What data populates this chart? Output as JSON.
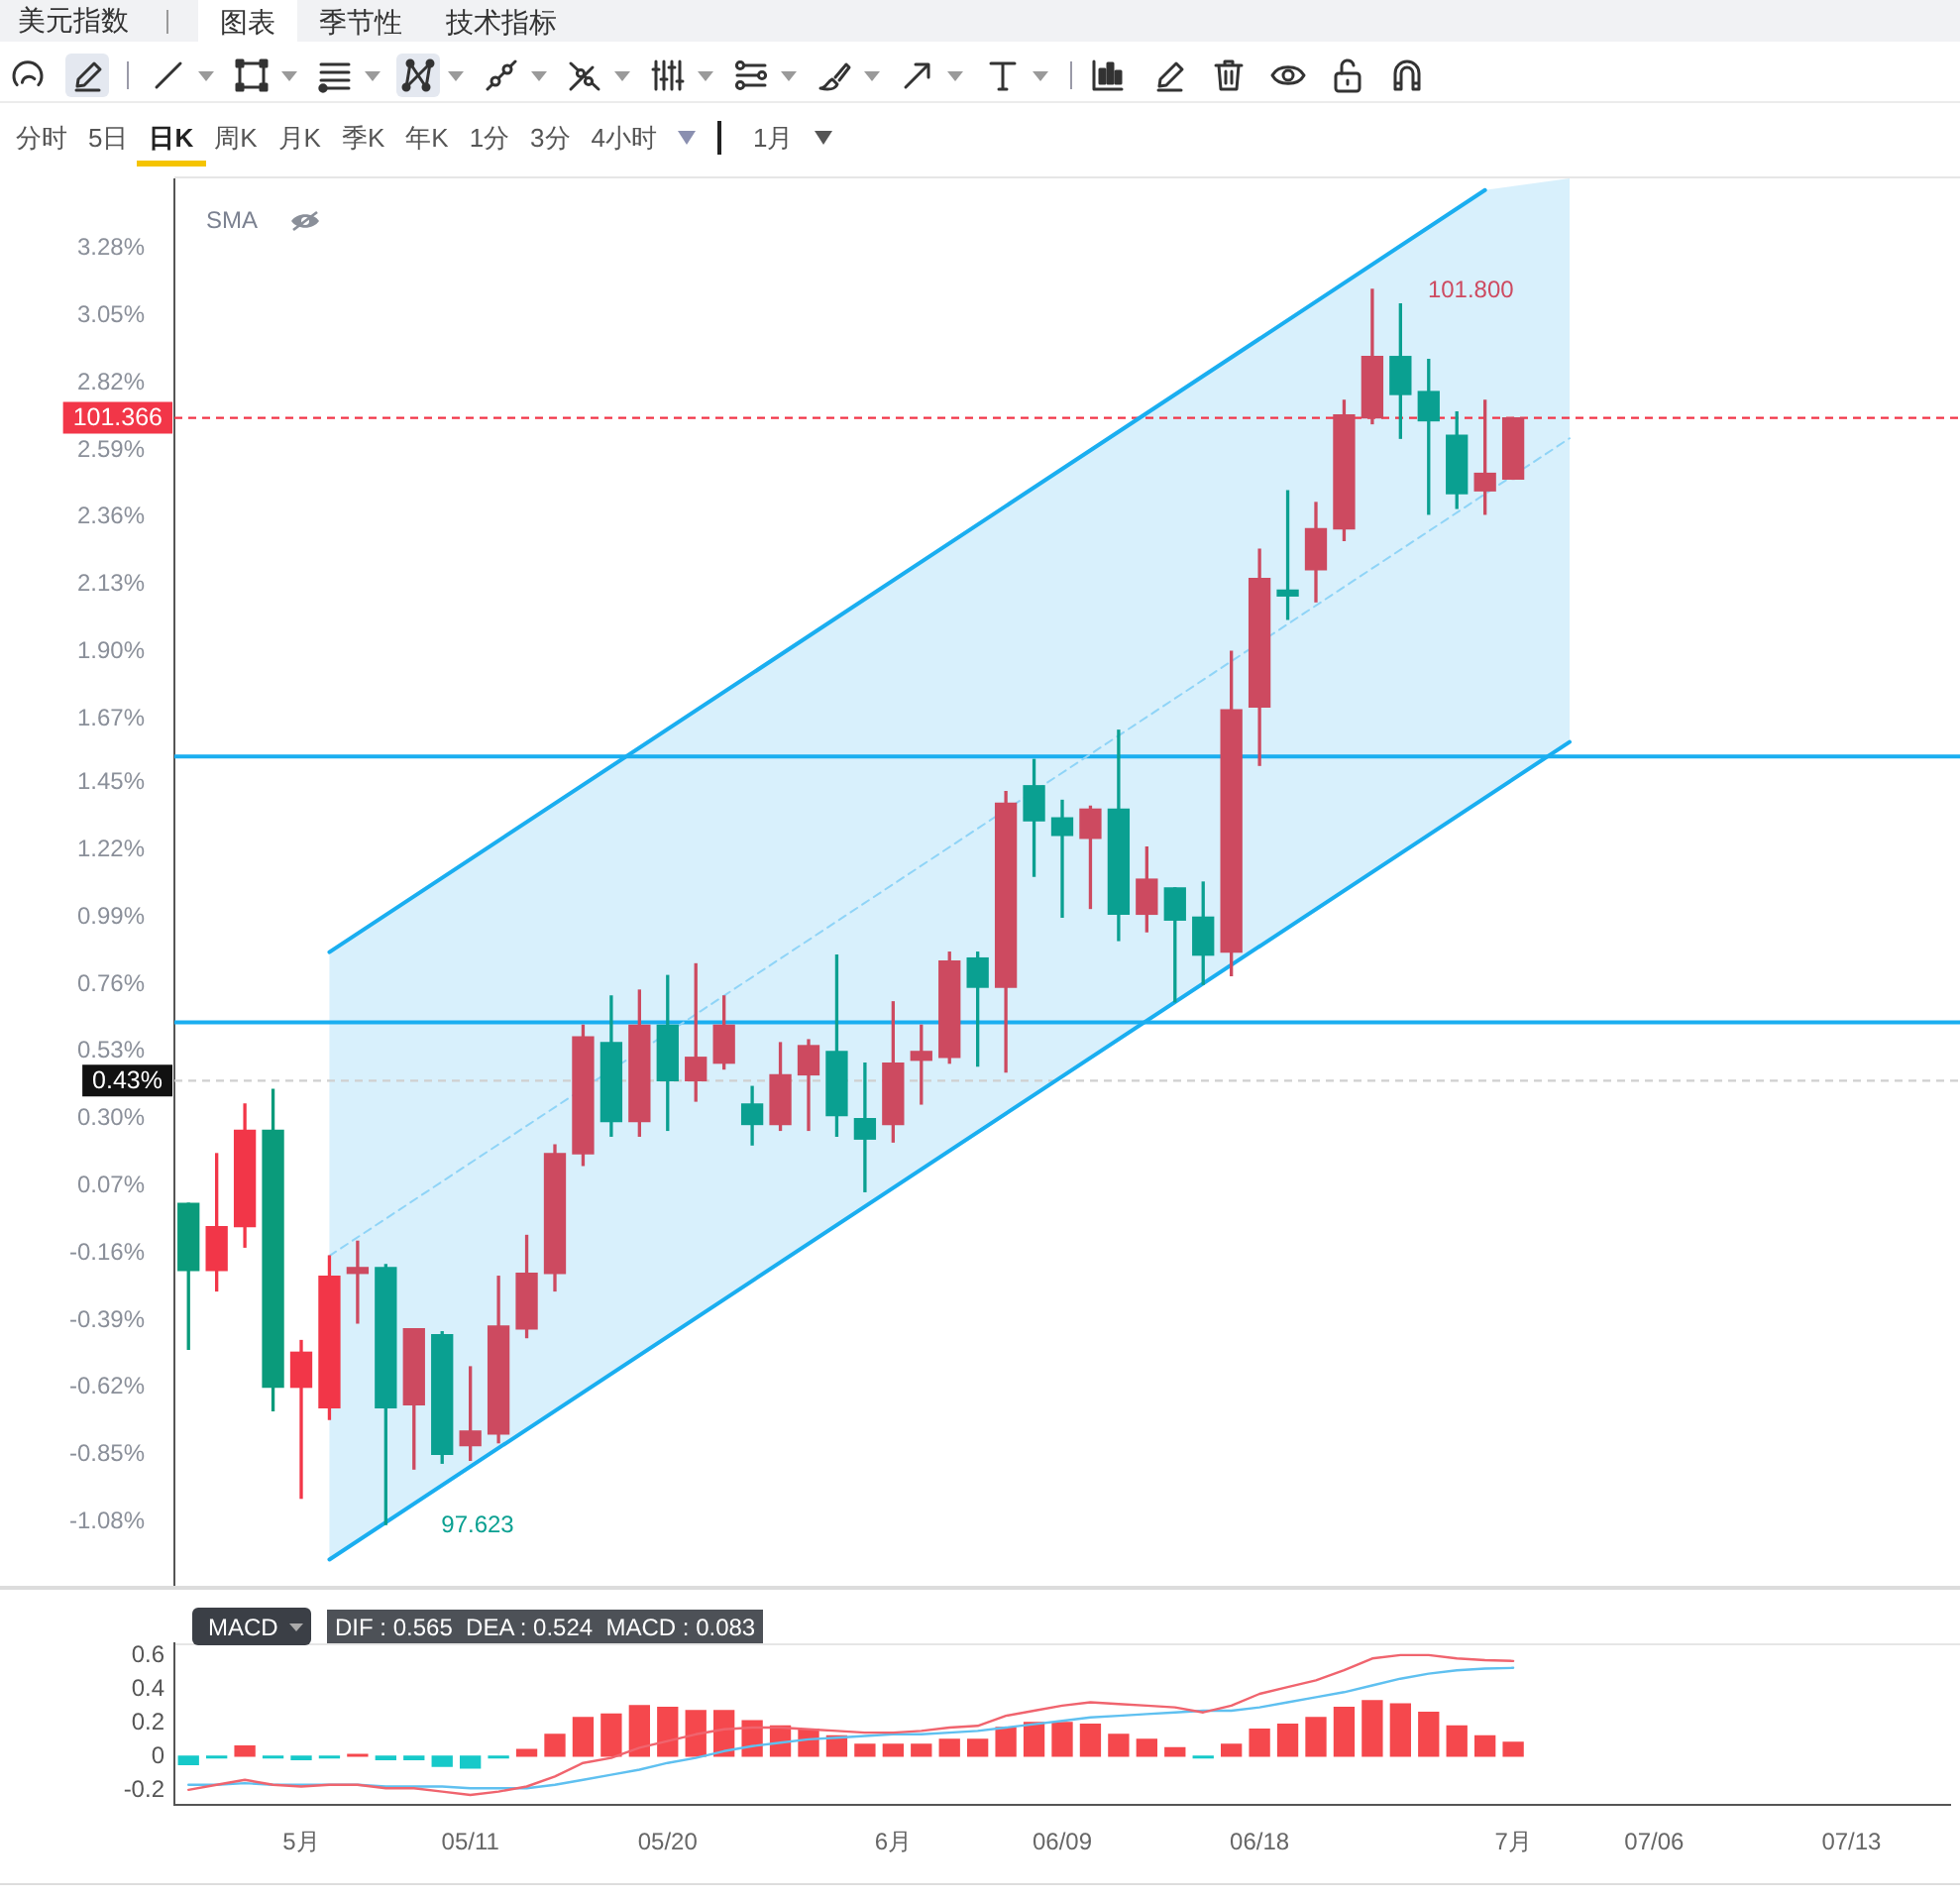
{
  "chart_data": [
    {
      "type": "other",
      "title": "美元指数",
      "annotations": [
        "图表",
        "季节性",
        "技术指标",
        "分时",
        "5日",
        "日K",
        "周K",
        "月K",
        "季K",
        "年K",
        "1分",
        "3分",
        "4小时",
        "1月"
      ]
    },
    {
      "type": "candlestick",
      "tick_labels": "y",
      "grid": false,
      "legend": false,
      "categories": [
        null,
        null,
        null,
        null,
        null,
        null,
        null,
        null,
        null,
        null,
        null,
        null,
        null,
        null,
        null,
        null,
        null,
        null,
        null,
        null,
        null,
        null,
        null,
        null,
        null,
        null,
        null,
        null,
        null,
        null,
        null,
        null,
        null,
        null,
        null,
        null,
        null,
        null,
        null,
        null,
        null,
        null,
        null,
        null,
        null,
        null,
        null,
        null,
        null,
        null,
        null,
        null,
        null,
        null,
        null,
        null,
        null,
        null,
        null,
        null,
        null,
        null,
        null
      ],
      "ohlc": [
        [
          0.01,
          0.01,
          -0.49,
          -0.22
        ],
        [
          -0.22,
          0.18,
          -0.29,
          -0.07
        ],
        [
          -0.07,
          0.35,
          -0.14,
          0.26
        ],
        [
          0.26,
          0.4,
          -0.7,
          -0.62
        ],
        [
          -0.62,
          -0.46,
          -1.0,
          -0.5
        ],
        [
          -0.69,
          -0.17,
          -0.73,
          -0.24
        ],
        [
          -0.23,
          -0.12,
          -0.4,
          -0.21
        ],
        [
          -0.21,
          -0.2,
          -1.09,
          -0.69
        ],
        [
          -0.68,
          -0.42,
          -0.9,
          -0.42
        ],
        [
          -0.44,
          -0.43,
          -0.88,
          -0.85
        ],
        [
          -0.82,
          -0.55,
          -0.87,
          -0.77
        ],
        [
          -0.78,
          -0.24,
          -0.81,
          -0.41
        ],
        [
          -0.42,
          -0.1,
          -0.45,
          -0.23
        ],
        [
          -0.23,
          0.21,
          -0.29,
          0.18
        ],
        [
          0.18,
          0.62,
          0.14,
          0.58
        ],
        [
          0.56,
          0.72,
          0.24,
          0.29
        ],
        [
          0.29,
          0.74,
          0.24,
          0.62
        ],
        [
          0.62,
          0.79,
          0.26,
          0.43
        ],
        [
          0.43,
          0.83,
          0.36,
          0.51
        ],
        [
          0.49,
          0.72,
          0.47,
          0.62
        ],
        [
          0.35,
          0.41,
          0.21,
          0.28
        ],
        [
          0.28,
          0.56,
          0.26,
          0.45
        ],
        [
          0.45,
          0.57,
          0.26,
          0.55
        ],
        [
          0.53,
          0.86,
          0.24,
          0.31
        ],
        [
          0.3,
          0.49,
          0.05,
          0.23
        ],
        [
          0.28,
          0.7,
          0.22,
          0.49
        ],
        [
          0.5,
          0.62,
          0.35,
          0.53
        ],
        [
          0.51,
          0.87,
          0.49,
          0.84
        ],
        [
          0.85,
          0.87,
          0.48,
          0.75
        ],
        [
          0.75,
          1.42,
          0.46,
          1.38
        ],
        [
          1.44,
          1.53,
          1.13,
          1.32
        ],
        [
          1.33,
          1.39,
          0.99,
          1.27
        ],
        [
          1.26,
          1.37,
          1.02,
          1.36
        ],
        [
          1.36,
          1.63,
          0.91,
          1.0
        ],
        [
          1.0,
          1.23,
          0.94,
          1.12
        ],
        [
          1.09,
          1.09,
          0.7,
          0.98
        ],
        [
          0.99,
          1.11,
          0.76,
          0.86
        ],
        [
          0.87,
          1.9,
          0.79,
          1.7
        ],
        [
          1.71,
          2.25,
          1.51,
          2.15
        ],
        [
          2.11,
          2.45,
          2.01,
          2.09
        ],
        [
          2.18,
          2.41,
          2.07,
          2.32
        ],
        [
          2.32,
          2.76,
          2.28,
          2.71
        ],
        [
          2.7,
          3.14,
          2.68,
          2.91
        ],
        [
          2.91,
          3.09,
          2.63,
          2.78
        ],
        [
          2.79,
          2.9,
          2.37,
          2.69
        ],
        [
          2.64,
          2.72,
          2.39,
          2.44
        ],
        [
          2.45,
          2.76,
          2.37,
          2.51
        ],
        [
          2.49,
          2.7,
          2.49,
          2.7
        ],
        null,
        null,
        null,
        null,
        null,
        null,
        null,
        null,
        null,
        null,
        null,
        null,
        null,
        null,
        null
      ],
      "colors": [
        "#0a9b7b",
        "#f23648",
        "#f23648",
        "#0a9b7b",
        "#f23648",
        "#f23648",
        "#cd4a60",
        "#0aa091",
        "#cd4a60",
        "#0aa091",
        "#cd4a60",
        "#cd4a60",
        "#cd4a60",
        "#cd4a60",
        "#cd4a60",
        "#0aa091",
        "#cd4a60",
        "#0aa091",
        "#cd4a60",
        "#cd4a60",
        "#0aa091",
        "#cd4a60",
        "#cd4a60",
        "#0aa091",
        "#0aa091",
        "#cd4a60",
        "#cd4a60",
        "#cd4a60",
        "#0aa091",
        "#cd4a60",
        "#0aa091",
        "#0aa091",
        "#cd4a60",
        "#0aa091",
        "#cd4a60",
        "#0aa091",
        "#0aa091",
        "#cd4a60",
        "#cd4a60",
        "#0aa091",
        "#cd4a60",
        "#cd4a60",
        "#cd4a60",
        "#0aa091",
        "#0aa091",
        "#0aa091",
        "#cd4a60",
        "#cd4a60",
        null,
        null,
        null,
        null,
        null,
        null,
        null,
        null,
        null,
        null,
        null,
        null,
        null,
        null,
        null
      ],
      "series": [
        {
          "type": "line",
          "color": "#1aaef0",
          "values": [
            null,
            null,
            null,
            null,
            null,
            0.87,
            null,
            null,
            null,
            null,
            null,
            null,
            null,
            null,
            null,
            null,
            null,
            null,
            null,
            null,
            null,
            null,
            null,
            null,
            null,
            null,
            null,
            null,
            null,
            null,
            null,
            null,
            null,
            null,
            null,
            null,
            null,
            null,
            null,
            null,
            null,
            null,
            null,
            null,
            null,
            null,
            3.48,
            null,
            null,
            null,
            null,
            null,
            null,
            null,
            null,
            null,
            null,
            null,
            null,
            null,
            null,
            null,
            null
          ]
        },
        {
          "type": "line",
          "color": "#1aaef0",
          "values": [
            null,
            null,
            null,
            null,
            null,
            -1.21,
            null,
            null,
            null,
            null,
            null,
            null,
            null,
            null,
            null,
            null,
            null,
            null,
            null,
            null,
            null,
            null,
            null,
            null,
            null,
            null,
            null,
            null,
            null,
            null,
            null,
            null,
            null,
            null,
            null,
            null,
            null,
            null,
            null,
            null,
            null,
            null,
            null,
            null,
            null,
            null,
            null,
            null,
            null,
            1.59,
            null,
            null,
            null,
            null,
            null,
            null,
            null,
            null,
            null,
            null,
            null,
            null,
            null
          ]
        },
        {
          "type": "line",
          "color": "#8fd4f7",
          "line_style": "dashed",
          "values": [
            null,
            null,
            null,
            null,
            null,
            -0.17,
            null,
            null,
            null,
            null,
            null,
            null,
            null,
            null,
            null,
            null,
            null,
            null,
            null,
            null,
            null,
            null,
            null,
            null,
            null,
            null,
            null,
            null,
            null,
            null,
            null,
            null,
            null,
            null,
            null,
            null,
            null,
            null,
            null,
            null,
            null,
            null,
            null,
            null,
            null,
            null,
            null,
            null,
            null,
            2.63,
            null,
            null,
            null,
            null,
            null,
            null,
            null,
            null,
            null,
            null,
            null,
            null,
            null
          ],
          "lower": [
            null,
            null,
            null,
            null,
            null,
            -1.21,
            null,
            null,
            null,
            null,
            null,
            null,
            null,
            null,
            null,
            null,
            null,
            null,
            null,
            null,
            null,
            null,
            null,
            null,
            null,
            null,
            null,
            null,
            null,
            null,
            null,
            null,
            null,
            null,
            null,
            null,
            null,
            null,
            null,
            null,
            null,
            null,
            null,
            null,
            null,
            null,
            1.4,
            null,
            null,
            1.59,
            null,
            null,
            null,
            null,
            null,
            null,
            null,
            null,
            null,
            null,
            null,
            null,
            null
          ],
          "upper": [
            null,
            null,
            null,
            null,
            null,
            0.87,
            null,
            null,
            null,
            null,
            null,
            null,
            null,
            null,
            null,
            null,
            null,
            null,
            null,
            null,
            null,
            null,
            null,
            null,
            null,
            null,
            null,
            null,
            null,
            null,
            null,
            null,
            null,
            null,
            null,
            null,
            null,
            null,
            null,
            null,
            null,
            null,
            null,
            null,
            null,
            null,
            3.48,
            null,
            null,
            3.52,
            null,
            null,
            null,
            null,
            null,
            null,
            null,
            null,
            null,
            null,
            null,
            null,
            null
          ]
        }
      ],
      "ylim": [
        -1.3,
        3.52
      ],
      "yticks": [
        {
          "value": -1.08,
          "label": "-1.08%"
        },
        {
          "value": -0.85,
          "label": "-0.85%"
        },
        {
          "value": -0.62,
          "label": "-0.62%"
        },
        {
          "value": -0.39,
          "label": "-0.39%"
        },
        {
          "value": -0.16,
          "label": "-0.16%"
        },
        {
          "value": 0.07,
          "label": "0.07%"
        },
        {
          "value": 0.3,
          "label": "0.30%"
        },
        {
          "value": 0.53,
          "label": "0.53%"
        },
        {
          "value": 0.76,
          "label": "0.76%"
        },
        {
          "value": 0.99,
          "label": "0.99%"
        },
        {
          "value": 1.22,
          "label": "1.22%"
        },
        {
          "value": 1.45,
          "label": "1.45%"
        },
        {
          "value": 1.67,
          "label": "1.67%"
        },
        {
          "value": 1.9,
          "label": "1.90%"
        },
        {
          "value": 2.13,
          "label": "2.13%"
        },
        {
          "value": 2.36,
          "label": "2.36%"
        },
        {
          "value": 2.59,
          "label": "2.59%"
        },
        {
          "value": 2.82,
          "label": "2.82%"
        },
        {
          "value": 3.05,
          "label": "3.05%"
        },
        {
          "value": 3.28,
          "label": "3.28%"
        }
      ],
      "ref_lines": [
        {
          "axis": "y",
          "value": 1.54,
          "color": "#1aaef0"
        },
        {
          "axis": "y",
          "value": 0.63,
          "color": "#1aaef0"
        },
        {
          "axis": "y",
          "value": 2.7,
          "color": "#f23648",
          "line_style": "dashed"
        },
        {
          "axis": "y",
          "value": 0.43,
          "label": "0.43%",
          "color": "#d0d0d0",
          "line_style": "dashed"
        }
      ],
      "annotations": [
        "SMA",
        "101.800",
        "97.623",
        "101.366"
      ]
    },
    {
      "type": "bar",
      "title": "MACD",
      "grid": false,
      "legend": false,
      "annotations": [
        "DIF : 0.565  DEA : 0.524  MACD : 0.083"
      ],
      "categories": [
        null,
        null,
        null,
        null,
        "5月",
        null,
        null,
        null,
        null,
        null,
        "05/11",
        null,
        null,
        null,
        null,
        null,
        null,
        "05/20",
        null,
        null,
        null,
        null,
        null,
        null,
        null,
        "6月",
        null,
        null,
        null,
        null,
        null,
        "06/09",
        null,
        null,
        null,
        null,
        null,
        null,
        "06/18",
        null,
        null,
        null,
        null,
        null,
        null,
        null,
        null,
        "7月",
        null,
        null,
        null,
        null,
        "07/06",
        null,
        null,
        null,
        null,
        null,
        null,
        "07/13",
        null,
        null,
        null
      ],
      "series": [
        {
          "type": "bar",
          "values": [
            -0.05,
            -0.01,
            0.06,
            -0.01,
            -0.02,
            -0.01,
            0.01,
            -0.02,
            -0.02,
            -0.06,
            -0.07,
            -0.01,
            0.04,
            0.13,
            0.23,
            0.25,
            0.3,
            0.29,
            0.27,
            0.27,
            0.21,
            0.18,
            0.16,
            0.12,
            0.07,
            0.07,
            0.07,
            0.1,
            0.1,
            0.17,
            0.2,
            0.2,
            0.19,
            0.13,
            0.1,
            0.05,
            -0.01,
            0.07,
            0.16,
            0.19,
            0.23,
            0.29,
            0.33,
            0.31,
            0.26,
            0.18,
            0.12,
            0.083,
            null,
            null,
            null,
            null,
            null,
            null,
            null,
            null,
            null,
            null,
            null,
            null,
            null,
            null,
            null
          ],
          "colors": [
            "#16c9c9",
            "#16c9c9",
            "#f5484d",
            "#16c9c9",
            "#16c9c9",
            "#16c9c9",
            "#f5484d",
            "#16c9c9",
            "#16c9c9",
            "#16c9c9",
            "#16c9c9",
            "#16c9c9",
            "#f5484d",
            "#f5484d",
            "#f5484d",
            "#f5484d",
            "#f5484d",
            "#f5484d",
            "#f5484d",
            "#f5484d",
            "#f5484d",
            "#f5484d",
            "#f5484d",
            "#f5484d",
            "#f5484d",
            "#f5484d",
            "#f5484d",
            "#f5484d",
            "#f5484d",
            "#f5484d",
            "#f5484d",
            "#f5484d",
            "#f5484d",
            "#f5484d",
            "#f5484d",
            "#f5484d",
            "#16c9c9",
            "#f5484d",
            "#f5484d",
            "#f5484d",
            "#f5484d",
            "#f5484d",
            "#f5484d",
            "#f5484d",
            "#f5484d",
            "#f5484d",
            "#f5484d",
            "#f5484d",
            null,
            null,
            null,
            null,
            null,
            null,
            null,
            null,
            null,
            null,
            null,
            null,
            null,
            null,
            null
          ]
        },
        {
          "type": "line",
          "color": "#f0646e",
          "values": [
            -0.2,
            -0.17,
            -0.14,
            -0.17,
            -0.18,
            -0.17,
            -0.17,
            -0.19,
            -0.19,
            -0.21,
            -0.23,
            -0.21,
            -0.18,
            -0.12,
            -0.04,
            -0.01,
            0.05,
            0.09,
            0.13,
            0.16,
            0.17,
            0.17,
            0.16,
            0.15,
            0.14,
            0.14,
            0.15,
            0.17,
            0.18,
            0.24,
            0.27,
            0.3,
            0.32,
            0.31,
            0.3,
            0.29,
            0.26,
            0.3,
            0.37,
            0.41,
            0.45,
            0.51,
            0.58,
            0.6,
            0.6,
            0.58,
            0.57,
            0.565,
            null,
            null,
            null,
            null,
            null,
            null,
            null,
            null,
            null,
            null,
            null,
            null,
            null,
            null,
            null
          ]
        },
        {
          "type": "line",
          "color": "#5fc0f0",
          "values": [
            -0.17,
            -0.17,
            -0.16,
            -0.17,
            -0.17,
            -0.17,
            -0.17,
            -0.18,
            -0.18,
            -0.18,
            -0.19,
            -0.19,
            -0.19,
            -0.17,
            -0.14,
            -0.11,
            -0.08,
            -0.04,
            -0.01,
            0.03,
            0.06,
            0.08,
            0.1,
            0.11,
            0.12,
            0.13,
            0.13,
            0.14,
            0.15,
            0.17,
            0.19,
            0.21,
            0.23,
            0.24,
            0.25,
            0.26,
            0.27,
            0.27,
            0.29,
            0.32,
            0.35,
            0.38,
            0.42,
            0.46,
            0.49,
            0.51,
            0.52,
            0.524,
            null,
            null,
            null,
            null,
            null,
            null,
            null,
            null,
            null,
            null,
            null,
            null,
            null,
            null,
            null
          ]
        }
      ],
      "ylim": [
        -0.29,
        0.67
      ],
      "yticks": [
        -0.2,
        0,
        0.2,
        0.4,
        0.6
      ]
    }
  ]
}
